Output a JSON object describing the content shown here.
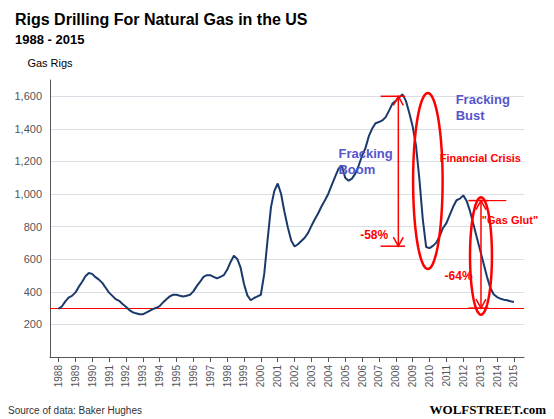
{
  "chart_data": {
    "type": "line",
    "title": "Rigs Drilling For Natural Gas in the US",
    "subtitle": "1988 - 2015",
    "ylabel": "Gas Rigs",
    "source": "Source of data: Baker Hughes",
    "watermark": "WOLFSTREET.com",
    "color": "#1b3a6b",
    "x": [
      1988.0,
      1988.2,
      1988.4,
      1988.6,
      1988.8,
      1989.0,
      1989.2,
      1989.4,
      1989.6,
      1989.8,
      1990.0,
      1990.2,
      1990.4,
      1990.6,
      1990.8,
      1991.0,
      1991.2,
      1991.4,
      1991.6,
      1991.8,
      1992.0,
      1992.2,
      1992.4,
      1992.6,
      1992.8,
      1993.0,
      1993.2,
      1993.4,
      1993.6,
      1993.8,
      1994.0,
      1994.2,
      1994.4,
      1994.6,
      1994.8,
      1995.0,
      1995.2,
      1995.4,
      1995.6,
      1995.8,
      1996.0,
      1996.2,
      1996.4,
      1996.6,
      1996.8,
      1997.0,
      1997.2,
      1997.4,
      1997.6,
      1997.8,
      1998.0,
      1998.2,
      1998.4,
      1998.6,
      1998.8,
      1999.0,
      1999.2,
      1999.4,
      1999.6,
      1999.8,
      2000.0,
      2000.2,
      2000.4,
      2000.6,
      2000.8,
      2001.0,
      2001.2,
      2001.4,
      2001.6,
      2001.8,
      2002.0,
      2002.2,
      2002.4,
      2002.6,
      2002.8,
      2003.0,
      2003.2,
      2003.4,
      2003.6,
      2003.8,
      2004.0,
      2004.2,
      2004.4,
      2004.6,
      2004.8,
      2005.0,
      2005.2,
      2005.4,
      2005.6,
      2005.8,
      2006.0,
      2006.2,
      2006.4,
      2006.6,
      2006.8,
      2007.0,
      2007.2,
      2007.4,
      2007.6,
      2007.8,
      2008.0,
      2008.2,
      2008.4,
      2008.6,
      2008.8,
      2009.0,
      2009.2,
      2009.4,
      2009.6,
      2009.8,
      2010.0,
      2010.2,
      2010.4,
      2010.6,
      2010.8,
      2011.0,
      2011.2,
      2011.4,
      2011.6,
      2011.8,
      2012.0,
      2012.2,
      2012.4,
      2012.6,
      2012.8,
      2013.0,
      2013.2,
      2013.4,
      2013.6,
      2013.8,
      2014.0,
      2014.2,
      2014.4,
      2014.6,
      2014.8,
      2015.0
    ],
    "values": [
      295,
      310,
      340,
      365,
      375,
      395,
      430,
      460,
      495,
      515,
      510,
      490,
      475,
      455,
      425,
      395,
      375,
      355,
      345,
      325,
      308,
      288,
      275,
      268,
      262,
      262,
      272,
      283,
      294,
      302,
      312,
      335,
      355,
      372,
      382,
      382,
      376,
      371,
      376,
      382,
      403,
      435,
      462,
      492,
      502,
      502,
      492,
      482,
      492,
      502,
      535,
      582,
      622,
      602,
      548,
      448,
      378,
      348,
      362,
      372,
      382,
      510,
      720,
      920,
      1020,
      1065,
      1000,
      890,
      795,
      715,
      678,
      692,
      712,
      732,
      762,
      805,
      845,
      882,
      925,
      962,
      1002,
      1055,
      1105,
      1155,
      1175,
      1100,
      1082,
      1095,
      1125,
      1175,
      1235,
      1282,
      1355,
      1402,
      1435,
      1442,
      1452,
      1472,
      1512,
      1555,
      1572,
      1592,
      1612,
      1572,
      1498,
      1415,
      1295,
      1090,
      845,
      675,
      668,
      682,
      702,
      742,
      792,
      822,
      872,
      922,
      962,
      972,
      992,
      958,
      895,
      815,
      735,
      655,
      575,
      495,
      425,
      385,
      368,
      358,
      352,
      348,
      342,
      338
    ],
    "xlim": [
      1987.5,
      2015.6
    ],
    "xticks": [
      1988,
      1989,
      1990,
      1991,
      1992,
      1993,
      1994,
      1995,
      1996,
      1997,
      1998,
      1999,
      2000,
      2001,
      2002,
      2003,
      2004,
      2005,
      2006,
      2007,
      2008,
      2009,
      2010,
      2011,
      2012,
      2013,
      2014,
      2015
    ],
    "ylim": [
      0,
      1700
    ],
    "yticks": [
      200,
      400,
      600,
      800,
      {
        "value": 1000,
        "label": "1,000"
      },
      {
        "value": 1200,
        "label": "1,200"
      },
      {
        "value": 1400,
        "label": "1,400"
      },
      {
        "value": 1600,
        "label": "1,600"
      }
    ],
    "grid": true,
    "reference_lines": [
      {
        "y": 300,
        "color": "red"
      }
    ],
    "annotations": [
      {
        "text": "Fracking\nBoom",
        "x": 2004.6,
        "y": 1200,
        "color": "#5555cc"
      },
      {
        "text": "Fracking\nBust",
        "x": 2011.55,
        "y": 1530,
        "color": "#5555cc"
      },
      {
        "text": "Financial Crisis",
        "x": 2010.6,
        "y": 1220,
        "color": "red"
      },
      {
        "text": "\"Gas Glut\"",
        "x": 2013.1,
        "y": 840,
        "color": "red"
      }
    ],
    "brackets": [
      {
        "label": "-58%",
        "label_x": 2007.55,
        "label_y": 750,
        "x": 2008.15,
        "x_left": 2007.1,
        "x_right": 2008.55,
        "y_top": 1600,
        "y_bottom": 680,
        "color": "red"
      },
      {
        "label": "-64%",
        "label_x": 2012.55,
        "label_y": 495,
        "x": 2013.05,
        "x_left": 2012.3,
        "x_right": 2013.5,
        "y_top": 960,
        "y_bottom": 300,
        "color": "red"
      }
    ],
    "ellipses": [
      {
        "cx": 2009.9,
        "cy": 1080,
        "w": 1.75,
        "h": 1080,
        "color": "red"
      },
      {
        "cx": 2013.05,
        "cy": 620,
        "w": 1.3,
        "h": 720,
        "color": "red"
      }
    ],
    "segments": [
      {
        "x": [
          2013.05,
          2014.55
        ],
        "y": 960,
        "color": "red"
      }
    ]
  }
}
